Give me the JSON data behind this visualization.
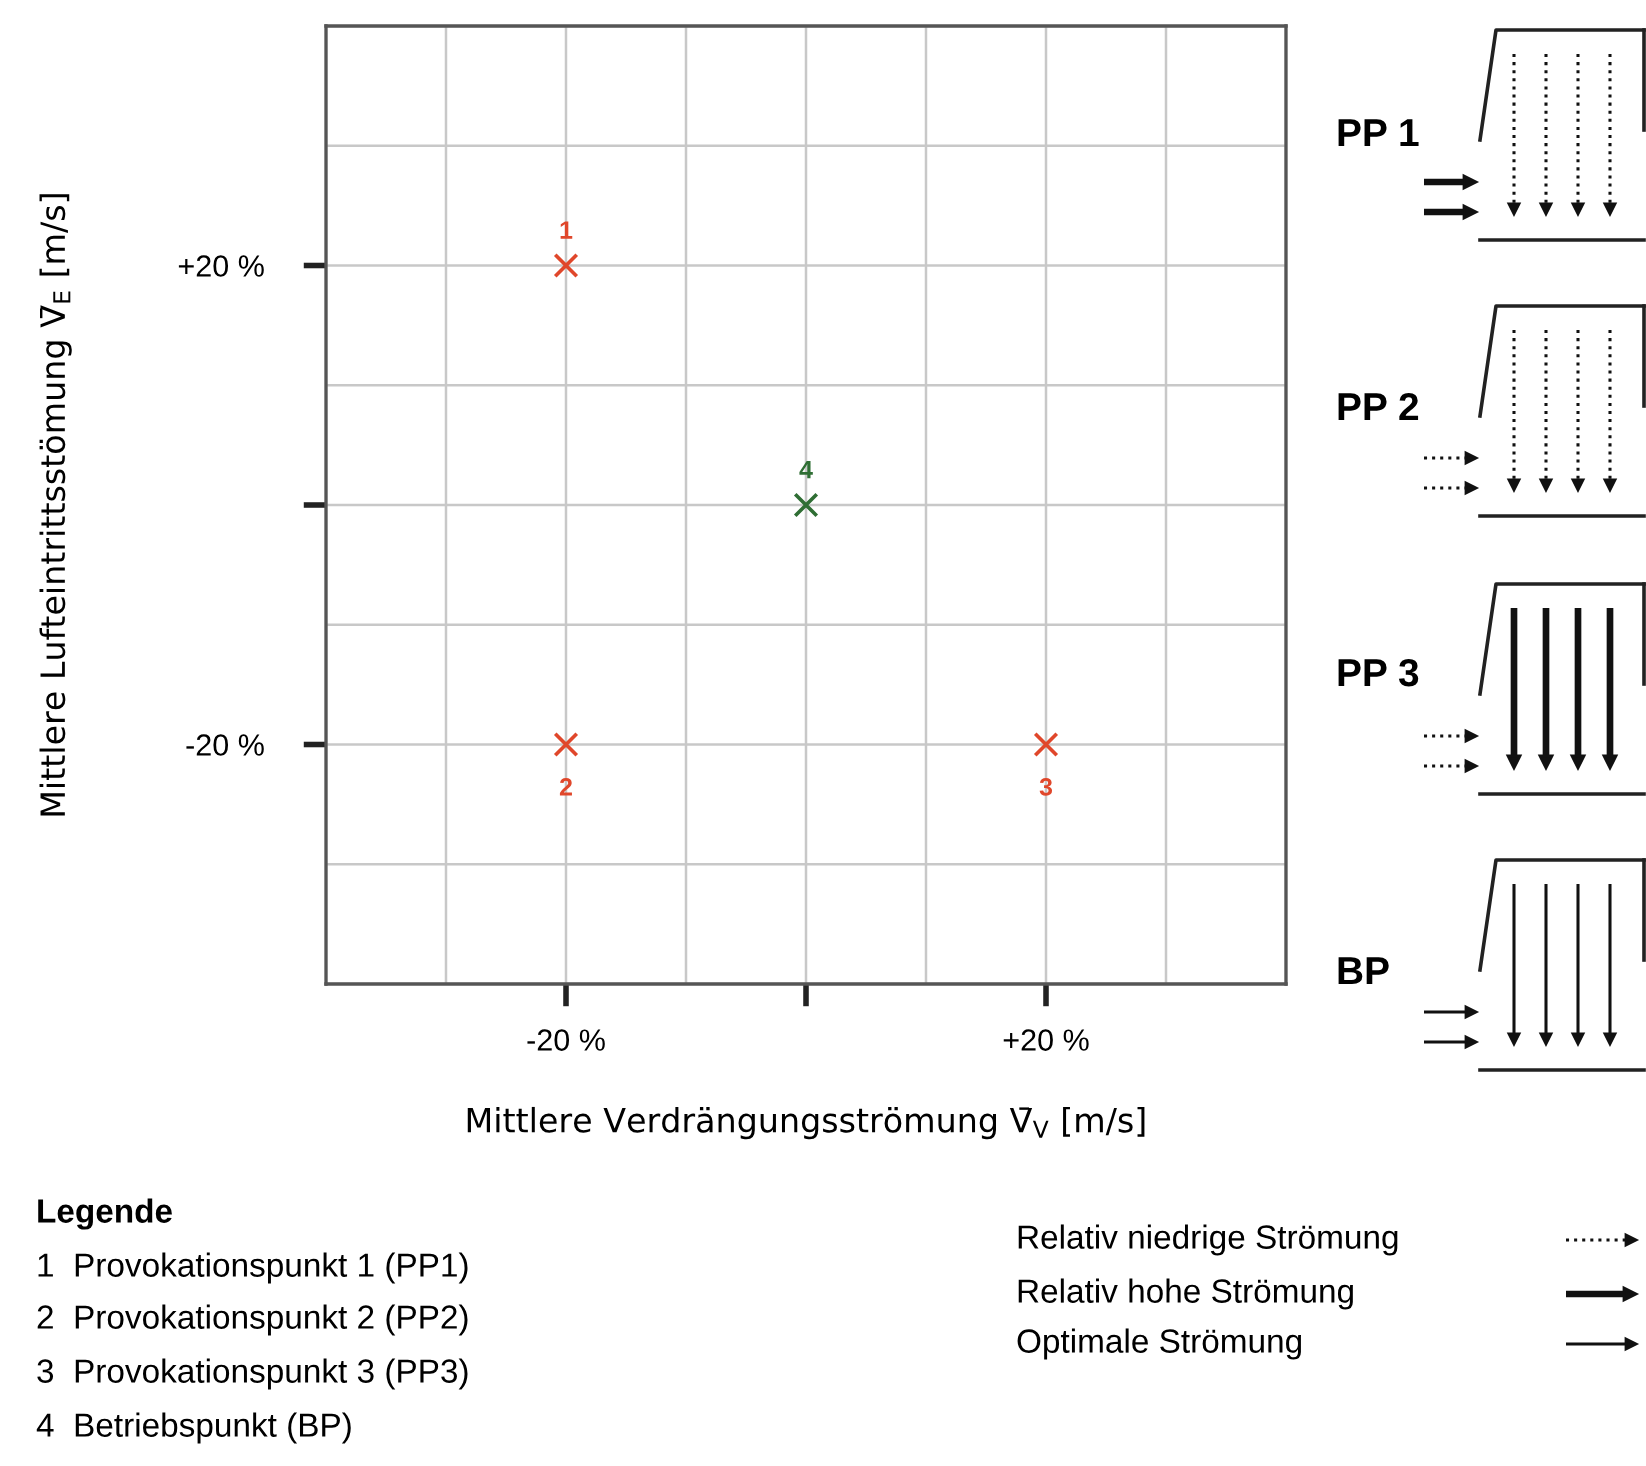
{
  "chart_data": {
    "type": "scatter",
    "xlabel": "Mittlere Verdrängungsströmung V̄$_{V}$ [m/s]",
    "ylabel": "Mittlere Lufteintrittsstömung V̄$_{E}$ [m/s]",
    "x": [
      -20,
      -20,
      20,
      0
    ],
    "values": [
      20,
      -20,
      -20,
      0
    ],
    "colors": [
      "#e0472b",
      "#e0472b",
      "#e0472b",
      "#2f6e34"
    ],
    "marker": "cross",
    "xlim": [
      -40,
      40
    ],
    "ylim": [
      -40,
      40
    ],
    "xticks": [
      {
        "value": -20,
        "label": "-20 %"
      },
      {
        "value": 0,
        "label": null
      },
      {
        "value": 20,
        "label": "+20 %"
      }
    ],
    "yticks": [
      {
        "value": -20,
        "label": "-20 %"
      },
      {
        "value": 0,
        "label": null
      },
      {
        "value": 20,
        "label": "+20 %"
      }
    ],
    "grid": true,
    "annotations": [
      {
        "text": "1",
        "x": -20,
        "y": 20
      },
      {
        "text": "2",
        "x": -20,
        "y": -20
      },
      {
        "text": "3",
        "x": 20,
        "y": -20
      },
      {
        "text": "4",
        "x": 0,
        "y": 0
      },
      "PP 1",
      "PP 2",
      "PP 3",
      "BP",
      "Legende",
      "1  Provokationspunkt 1 (PP1)",
      "2  Provokationspunkt 2 (PP2)",
      "3  Provokationspunkt 3 (PP3)",
      "4  Betriebspunkt (BP)",
      "Relativ niedrige Strömung",
      "Relativ hohe Strömung",
      "Optimale Strömung"
    ]
  }
}
